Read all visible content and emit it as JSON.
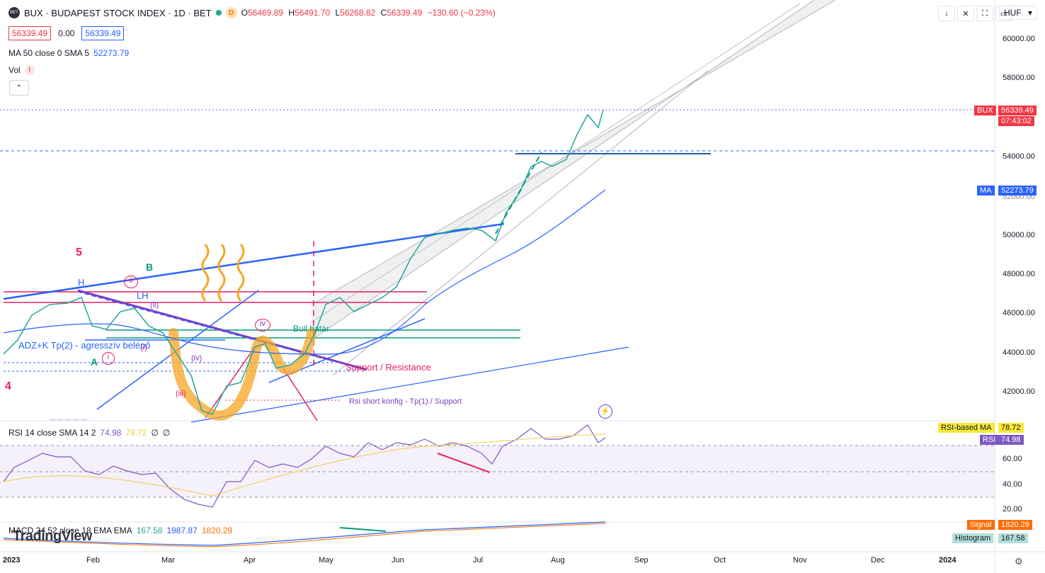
{
  "header": {
    "title": "BUX · BUDAPEST STOCK INDEX · 1D · BET",
    "logo_text": "BET",
    "badge": "D",
    "ohlc": [
      {
        "k": "O",
        "v": "56469.89"
      },
      {
        "k": "H",
        "v": "56491.70"
      },
      {
        "k": "L",
        "v": "56268.82"
      },
      {
        "k": "C",
        "v": "56339.49"
      }
    ],
    "change": "−130.60 (−0.23%)",
    "bid": "56339.49",
    "spread": "0.00",
    "ask": "56339.49"
  },
  "indicators": {
    "ma_label": "MA 50 close 0 SMA 5",
    "ma_value": "52273.79",
    "vol_label": "Vol",
    "vol_warning": "!",
    "collapse_icon": "chevron-up-icon"
  },
  "toolbar": {
    "buttons": [
      "↓",
      "✕",
      "⛶",
      "▭"
    ],
    "currency": "HUF",
    "currency_arrow": "▾"
  },
  "price_axis": {
    "ticks": [
      "60000.00",
      "58000.00",
      "54000.00",
      "50000.00",
      "48000.00",
      "46000.00",
      "44000.00",
      "42000.00"
    ],
    "partial_tick": "52000.00",
    "bux_tag_label": "BUX",
    "bux_tag_price": "56339.49",
    "bux_tag_time": "07:43:02",
    "ma_tag_label": "MA",
    "ma_tag_value": "52273.79"
  },
  "rsi": {
    "legend": "RSI 14 close SMA 14 2",
    "rsi_value": "74.98",
    "ma_value": "78.72",
    "sym1": "∅",
    "sym2": "∅",
    "ticks": [
      "60.00",
      "40.00",
      "20.00"
    ],
    "rsi_ma_tag_label": "RSI-based MA",
    "rsi_ma_tag_value": "78.72",
    "rsi_tag_label": "RSI",
    "rsi_tag_value": "74.98"
  },
  "macd": {
    "legend": "MACD 24 52 close 18 EMA EMA",
    "hist_value": "167.58",
    "macd_value": "1987.87",
    "signal_value": "1820.29",
    "signal_tag_label": "Signal",
    "signal_tag_value": "1820.29",
    "hist_tag_label": "Histogram",
    "hist_tag_value": "167.58"
  },
  "time_axis": {
    "labels": [
      "2023",
      "Feb",
      "Mar",
      "Apr",
      "May",
      "Jun",
      "Jul",
      "Aug",
      "Sep",
      "Oct",
      "Nov",
      "Dec",
      "2024"
    ]
  },
  "annotations": {
    "wave_5": "5",
    "wave_4": "4",
    "H": "H",
    "B": "B",
    "ii": "ii",
    "LH": "LH",
    "ii_paren": "(ii)",
    "iv_paren": "(iv)",
    "iv": "iv",
    "i_paren": "(i)",
    "A": "A",
    "i": "i",
    "iii_paren": "(iii)",
    "adz": "ADZ+K Tp(2) - agresszív belépő",
    "bull": "Bull határ",
    "support": "Support / Resistance",
    "rsi_short": "Rsi short konfig - Tp(1) / Support",
    "bottom_partial": "... ... ... ... ...",
    "watermark": "TradingView",
    "bolt_icon": "lightning-icon",
    "settings_icon": "gear-icon"
  },
  "colors": {
    "up": "#26a69a",
    "down": "#f23645",
    "ma": "#2962ff",
    "rsi": "#7e57c2",
    "rsi_ma": "#f7c948",
    "signal": "#ff6d00",
    "annotation_pink": "#e91e63",
    "annotation_orange": "#f5a623",
    "trend_purple": "#7b3fc4",
    "trend_green": "#089981"
  }
}
